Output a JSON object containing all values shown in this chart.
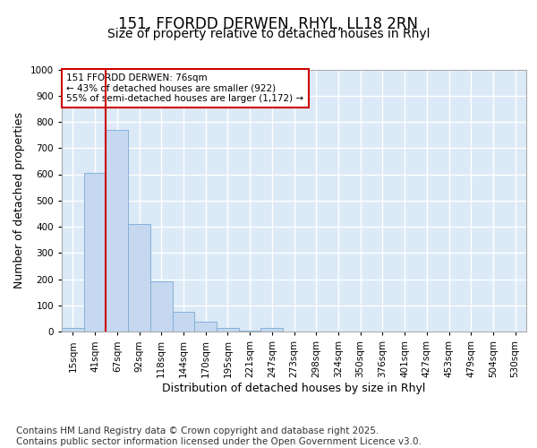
{
  "title": "151, FFORDD DERWEN, RHYL, LL18 2RN",
  "subtitle": "Size of property relative to detached houses in Rhyl",
  "xlabel": "Distribution of detached houses by size in Rhyl",
  "ylabel": "Number of detached properties",
  "bins": [
    "15sqm",
    "41sqm",
    "67sqm",
    "92sqm",
    "118sqm",
    "144sqm",
    "170sqm",
    "195sqm",
    "221sqm",
    "247sqm",
    "273sqm",
    "298sqm",
    "324sqm",
    "350sqm",
    "376sqm",
    "401sqm",
    "427sqm",
    "453sqm",
    "479sqm",
    "504sqm",
    "530sqm"
  ],
  "values": [
    13,
    605,
    770,
    410,
    193,
    75,
    38,
    15,
    5,
    13,
    0,
    0,
    0,
    0,
    0,
    0,
    0,
    0,
    0,
    0,
    0
  ],
  "bar_color": "#c5d8f0",
  "bar_edge_color": "#7aaad4",
  "highlight_line_color": "#cc0000",
  "annotation_text": "151 FFORDD DERWEN: 76sqm\n← 43% of detached houses are smaller (922)\n55% of semi-detached houses are larger (1,172) →",
  "annotation_box_color": "#cc0000",
  "ylim": [
    0,
    1000
  ],
  "yticks": [
    0,
    100,
    200,
    300,
    400,
    500,
    600,
    700,
    800,
    900,
    1000
  ],
  "footer_text": "Contains HM Land Registry data © Crown copyright and database right 2025.\nContains public sector information licensed under the Open Government Licence v3.0.",
  "bg_color": "#ffffff",
  "plot_bg_color": "#dce9f7",
  "grid_color": "#ffffff",
  "title_fontsize": 12,
  "subtitle_fontsize": 10,
  "axis_fontsize": 9,
  "tick_fontsize": 7.5,
  "footer_fontsize": 7.5
}
